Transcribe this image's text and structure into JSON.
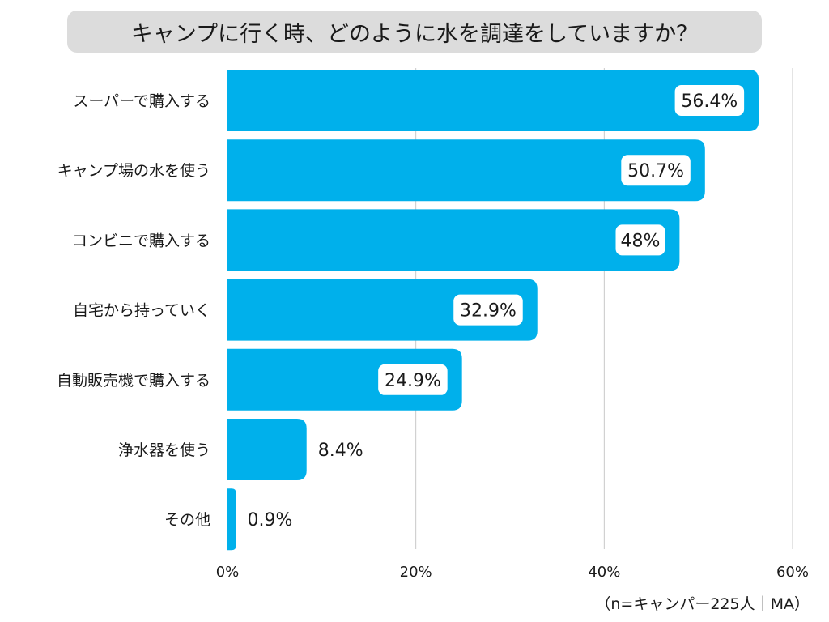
{
  "colors": {
    "bar": "#00b0eb",
    "grid": "#c8c8c8",
    "title_bg": "#dcdcdc",
    "label_box": "#ffffff"
  },
  "note": "（n=キャンパー225人｜MA）",
  "chart_data": {
    "type": "bar",
    "orientation": "horizontal",
    "title": "キャンプに行く時、どのように水を調達をしていますか？",
    "categories": [
      "スーパーで購入する",
      "キャンプ場の水を使う",
      "コンビニで購入する",
      "自宅から持っていく",
      "自動販売機で購入する",
      "浄水器を使う",
      "その他"
    ],
    "values": [
      56.4,
      50.7,
      48,
      32.9,
      24.9,
      8.4,
      0.9
    ],
    "value_labels": [
      "56.4%",
      "50.7%",
      "48%",
      "32.9%",
      "24.9%",
      "8.4%",
      "0.9%"
    ],
    "xlim": [
      0,
      60
    ],
    "xticks": [
      0,
      20,
      40,
      60
    ],
    "xtick_labels": [
      "0%",
      "20%",
      "40%",
      "60%"
    ],
    "grid": true,
    "unit": "%"
  }
}
